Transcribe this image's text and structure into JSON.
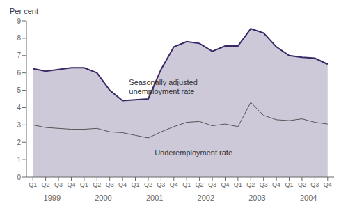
{
  "chart_data": {
    "type": "line",
    "ylabel": "Per cent",
    "categories": [
      "Q1",
      "Q2",
      "Q3",
      "Q4",
      "Q1",
      "Q2",
      "Q3",
      "Q4",
      "Q1",
      "Q2",
      "Q3",
      "Q4",
      "Q1",
      "Q2",
      "Q3",
      "Q4",
      "Q1",
      "Q2",
      "Q3",
      "Q4",
      "Q1",
      "Q2",
      "Q3",
      "Q4"
    ],
    "years": [
      "1999",
      "2000",
      "2001",
      "2002",
      "2003",
      "2004"
    ],
    "series": [
      {
        "type": "area",
        "color": "#3a2866",
        "values": [
          6.25,
          6.1,
          6.2,
          6.3,
          6.3,
          6.0,
          5.0,
          4.4,
          4.45,
          4.5,
          6.2,
          7.5,
          7.8,
          7.7,
          7.25,
          7.55,
          7.55,
          8.55,
          8.3,
          7.5,
          7.0,
          6.9,
          6.85,
          6.5
        ]
      },
      {
        "type": "line",
        "color": "#555555",
        "values": [
          3.0,
          2.85,
          2.8,
          2.75,
          2.75,
          2.8,
          2.6,
          2.55,
          2.4,
          2.25,
          2.6,
          2.9,
          3.15,
          3.2,
          2.95,
          3.05,
          2.9,
          4.3,
          3.55,
          3.3,
          3.25,
          3.35,
          3.15,
          3.05
        ]
      }
    ],
    "annotations": [
      {
        "text": "Seasonally adjusted\nunemployment rate",
        "x": 7.5,
        "y": 5.7
      },
      {
        "text": "Underemployment rate",
        "x": 9.5,
        "y": 1.65
      }
    ],
    "ylim": [
      0,
      9
    ],
    "yticks": [
      0,
      1,
      2,
      3,
      4,
      5,
      6,
      7,
      8,
      9
    ],
    "grid": false
  }
}
